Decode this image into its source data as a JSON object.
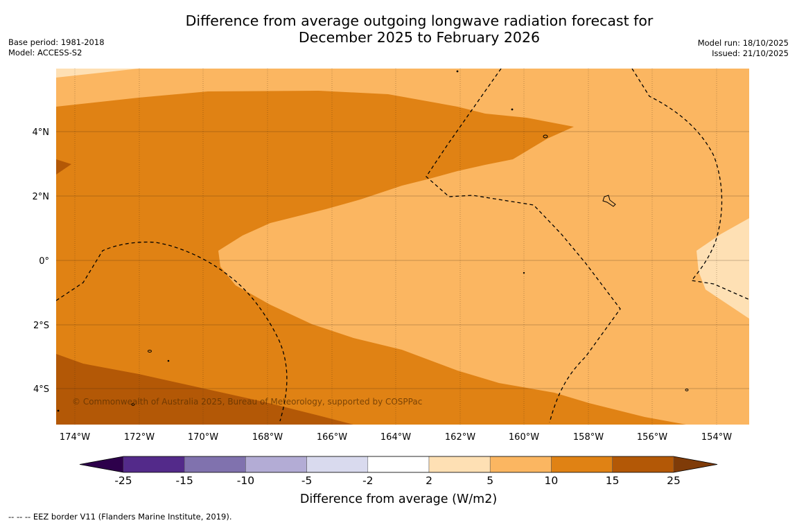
{
  "title": {
    "line1": "Difference from average outgoing longwave radiation forecast for",
    "line2": "December 2025 to February 2026"
  },
  "meta_left": {
    "base_period": "Base period: 1981-2018",
    "model": "Model: ACCESS-S2"
  },
  "meta_right": {
    "model_run": "Model run: 18/10/2025",
    "issued": "Issued: 21/10/2025"
  },
  "map": {
    "lon_range": [
      -174.6,
      -153.1
    ],
    "lat_range": [
      -5.1,
      5.8
    ],
    "x_ticks": [
      {
        "lon": -174,
        "label": "174°W"
      },
      {
        "lon": -172,
        "label": "172°W"
      },
      {
        "lon": -170,
        "label": "170°W"
      },
      {
        "lon": -168,
        "label": "168°W"
      },
      {
        "lon": -166,
        "label": "166°W"
      },
      {
        "lon": -164,
        "label": "164°W"
      },
      {
        "lon": -162,
        "label": "162°W"
      },
      {
        "lon": -160,
        "label": "160°W"
      },
      {
        "lon": -158,
        "label": "158°W"
      },
      {
        "lon": -156,
        "label": "156°W"
      },
      {
        "lon": -154,
        "label": "154°W"
      }
    ],
    "y_ticks": [
      {
        "lat": 4,
        "label": "4°N"
      },
      {
        "lat": 2,
        "label": "2°N"
      },
      {
        "lat": 0,
        "label": "0°"
      },
      {
        "lat": -2,
        "label": "2°S"
      },
      {
        "lat": -4,
        "label": "4°S"
      }
    ],
    "credit": "© Commonwealth of Australia 2025, Bureau of Meteorology, supported by COSPPac"
  },
  "colorbar": {
    "title": "Difference from average (W/m2)",
    "ticks": [
      "-25",
      "-15",
      "-10",
      "-5",
      "-2",
      "2",
      "5",
      "10",
      "15",
      "25"
    ],
    "colors": [
      "#532a8a",
      "#8072ae",
      "#b3acd5",
      "#d9daee",
      "#ffffff",
      "#fee0b4",
      "#fbb661",
      "#e08214",
      "#b35806"
    ],
    "under_color": "#2d004b",
    "over_color": "#7f3b08"
  },
  "palette": {
    "band_2_5": "#fee0b4",
    "band_5_10": "#fbb661",
    "band_10_15": "#e08214",
    "band_15_25": "#b35806"
  },
  "footnote": "-- -- -- EEZ border V11 (Flanders Marine Institute, 2019)."
}
